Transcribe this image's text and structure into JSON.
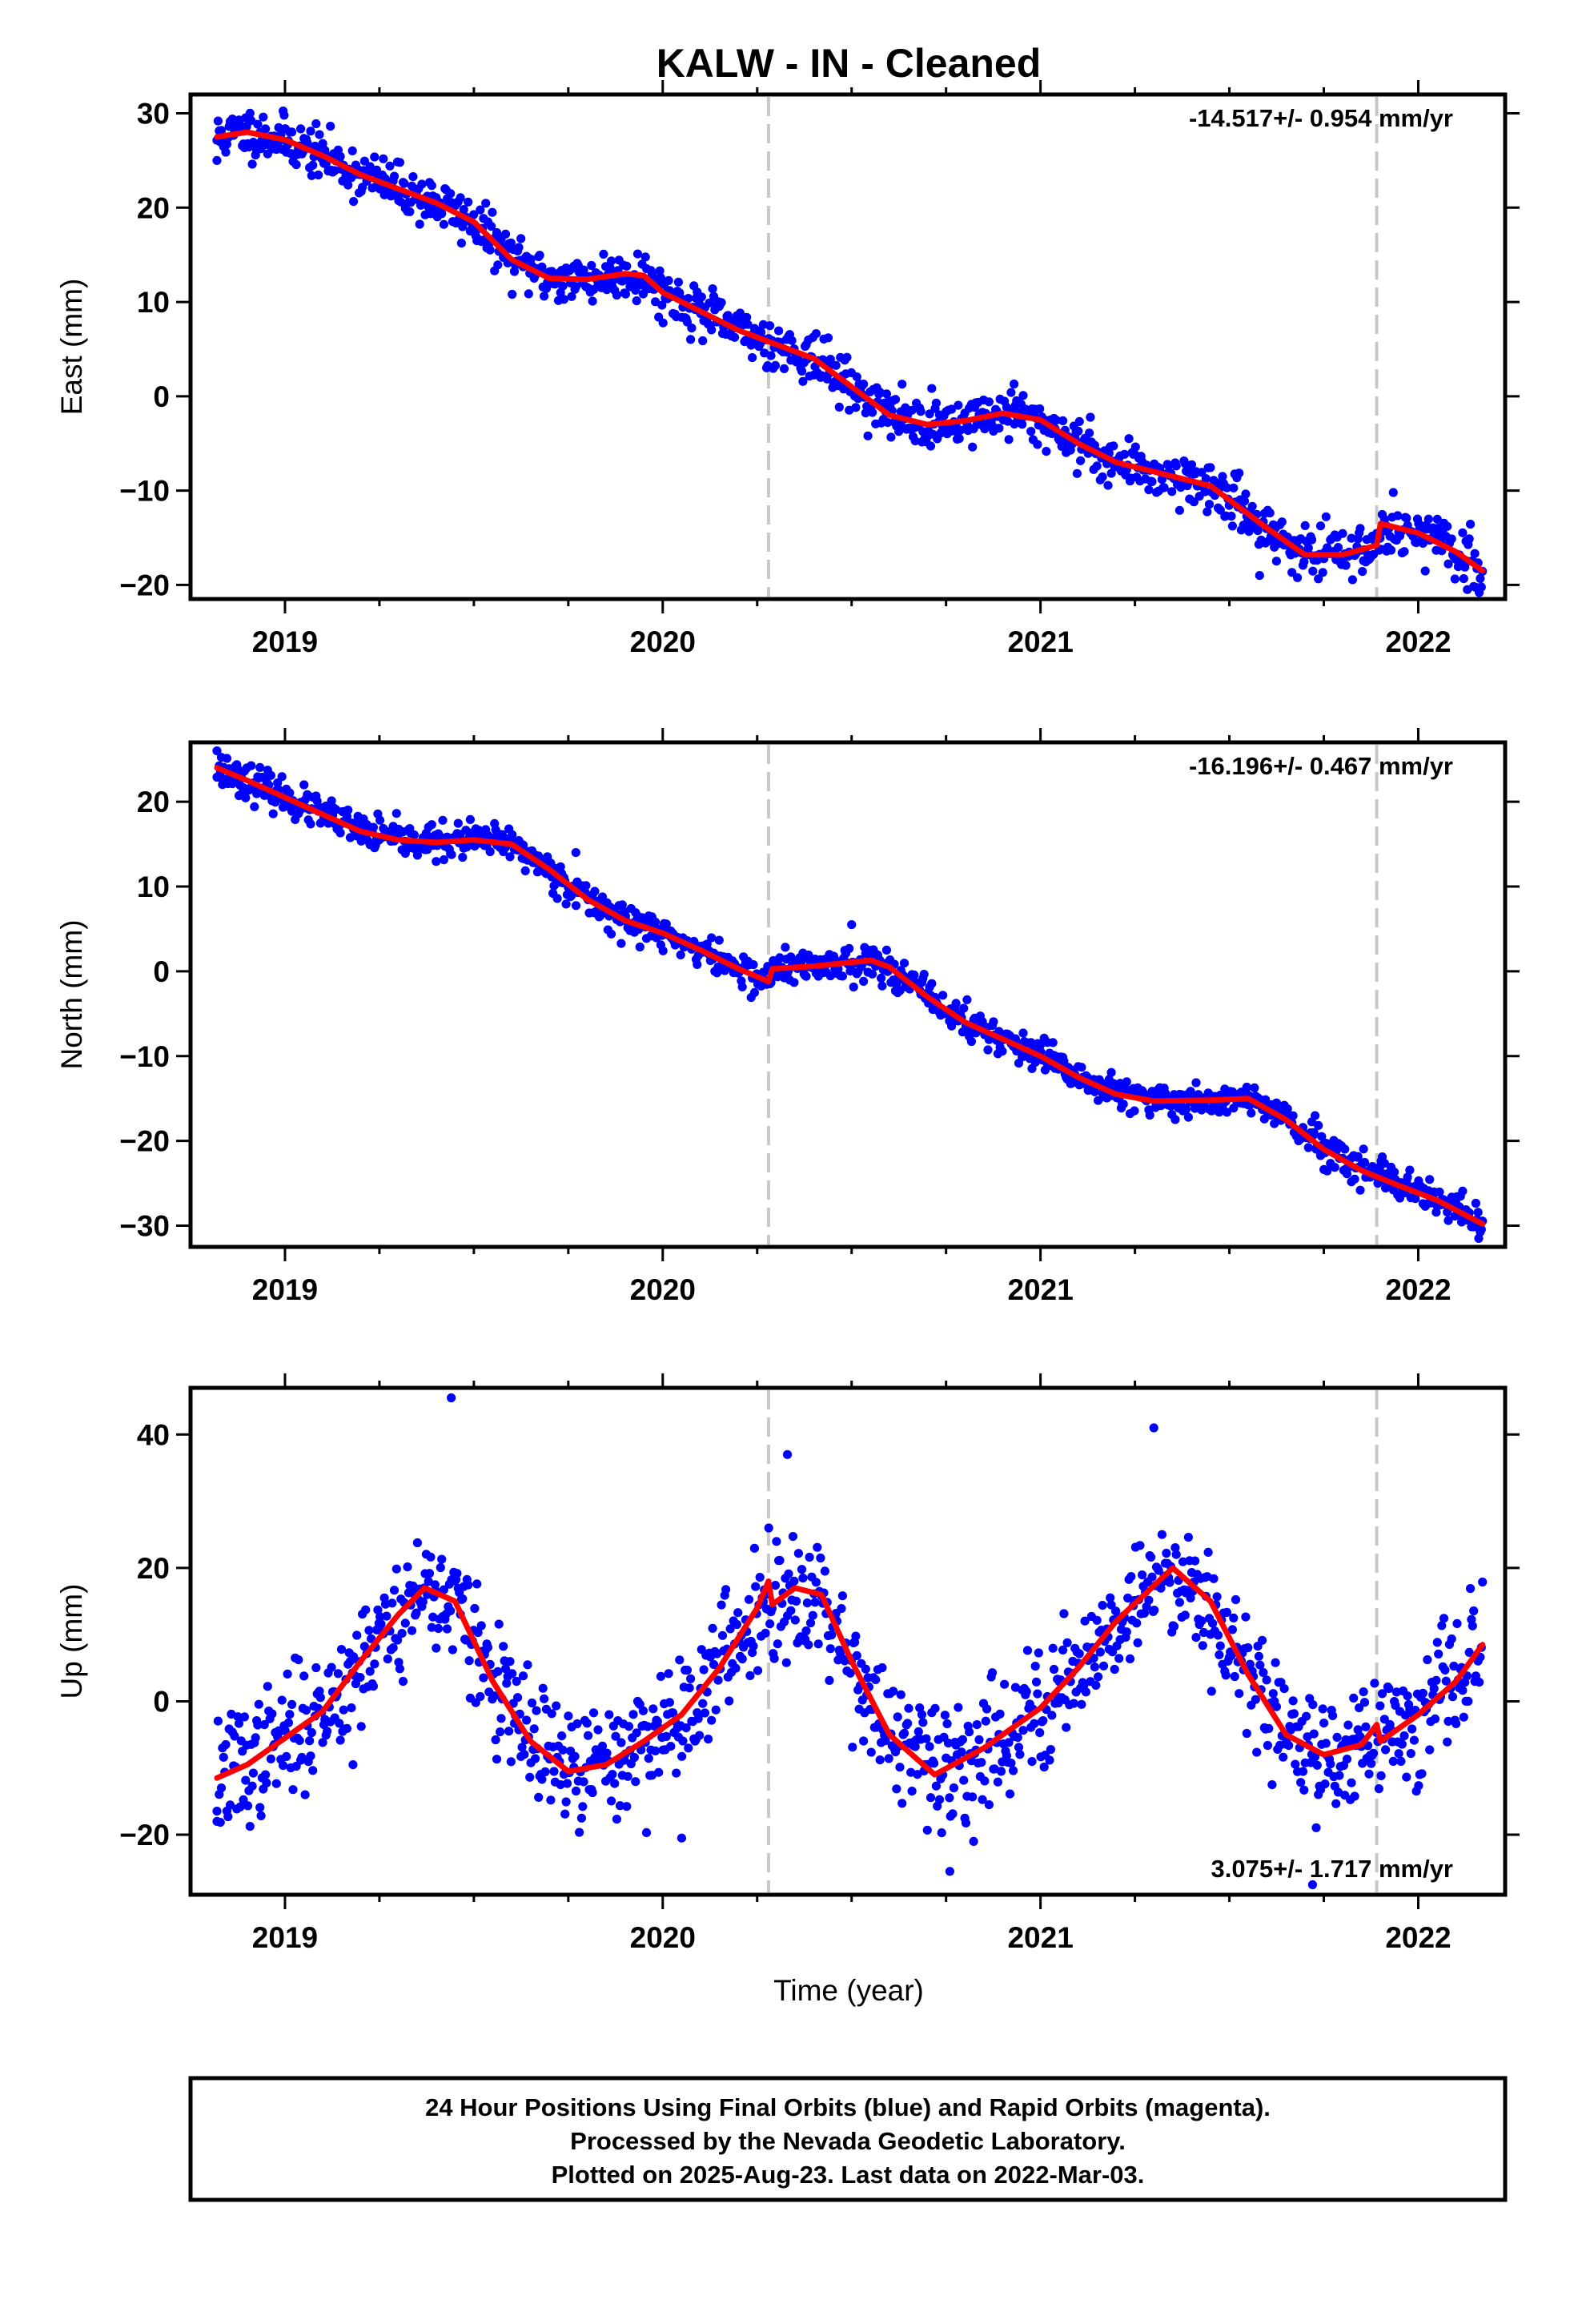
{
  "figure": {
    "title": "KALW  - IN - Cleaned",
    "xlabel": "Time (year)",
    "footer_lines": [
      "24 Hour Positions Using Final Orbits (blue) and Rapid Orbits (magenta).",
      "Processed by the Nevada Geodetic Laboratory.",
      "Plotted on 2025-Aug-23. Last data on 2022-Mar-03."
    ]
  },
  "colors": {
    "points": "#0000ff",
    "model": "#ff0000",
    "reference_lines": "#c8c8c8",
    "frame": "#000000"
  },
  "chart_data": [
    {
      "type": "scatter",
      "name": "east",
      "ylabel": "East (mm)",
      "rate_text": "-14.517+/- 0.954 mm/yr",
      "rate_position": "top-right",
      "xlim": [
        2018.75,
        2022.23
      ],
      "ylim": [
        -21.5,
        32.0
      ],
      "x_ticks": [
        2019,
        2020,
        2021,
        2022
      ],
      "y_ticks": [
        -20,
        -10,
        0,
        10,
        20,
        30
      ],
      "reference_lines_x": [
        2020.28,
        2021.89
      ],
      "point_range_x": [
        2018.82,
        2022.17
      ],
      "noise": 1.3,
      "seed": 11,
      "fit_curve": [
        [
          2018.82,
          27.5
        ],
        [
          2018.9,
          28.0
        ],
        [
          2019.0,
          27.2
        ],
        [
          2019.1,
          25.5
        ],
        [
          2019.2,
          23.5
        ],
        [
          2019.3,
          22.0
        ],
        [
          2019.4,
          20.5
        ],
        [
          2019.5,
          18.5
        ],
        [
          2019.6,
          14.5
        ],
        [
          2019.7,
          12.5
        ],
        [
          2019.8,
          12.4
        ],
        [
          2019.9,
          13.0
        ],
        [
          2019.95,
          12.8
        ],
        [
          2020.0,
          11.0
        ],
        [
          2020.1,
          9.0
        ],
        [
          2020.2,
          7.0
        ],
        [
          2020.28,
          5.8
        ],
        [
          2020.4,
          4.0
        ],
        [
          2020.5,
          1.0
        ],
        [
          2020.6,
          -2.0
        ],
        [
          2020.7,
          -3.0
        ],
        [
          2020.8,
          -2.6
        ],
        [
          2020.9,
          -1.8
        ],
        [
          2021.0,
          -2.5
        ],
        [
          2021.1,
          -5.0
        ],
        [
          2021.2,
          -7.0
        ],
        [
          2021.3,
          -8.0
        ],
        [
          2021.45,
          -9.5
        ],
        [
          2021.6,
          -14.0
        ],
        [
          2021.7,
          -16.8
        ],
        [
          2021.8,
          -16.8
        ],
        [
          2021.89,
          -15.8
        ],
        [
          2021.9,
          -13.5
        ],
        [
          2022.0,
          -14.5
        ],
        [
          2022.1,
          -16.5
        ],
        [
          2022.17,
          -18.5
        ]
      ],
      "outliers": [
        [
          2018.82,
          25.0
        ],
        [
          2022.13,
          -20.5
        ],
        [
          2021.58,
          -19.0
        ],
        [
          2020.93,
          1.3
        ]
      ]
    },
    {
      "type": "scatter",
      "name": "north",
      "ylabel": "North (mm)",
      "rate_text": "-16.196+/- 0.467 mm/yr",
      "rate_position": "top-right",
      "xlim": [
        2018.75,
        2022.23
      ],
      "ylim": [
        -32.5,
        27.0
      ],
      "x_ticks": [
        2019,
        2020,
        2021,
        2022
      ],
      "y_ticks": [
        -30,
        -20,
        -10,
        0,
        10,
        20
      ],
      "reference_lines_x": [
        2020.28,
        2021.89
      ],
      "point_range_x": [
        2018.82,
        2022.17
      ],
      "noise": 1.0,
      "seed": 23,
      "fit_curve": [
        [
          2018.82,
          24.0
        ],
        [
          2018.9,
          22.5
        ],
        [
          2019.0,
          20.5
        ],
        [
          2019.1,
          18.5
        ],
        [
          2019.2,
          16.5
        ],
        [
          2019.3,
          15.5
        ],
        [
          2019.4,
          15.2
        ],
        [
          2019.5,
          15.5
        ],
        [
          2019.6,
          15.0
        ],
        [
          2019.7,
          12.0
        ],
        [
          2019.8,
          8.5
        ],
        [
          2019.9,
          6.0
        ],
        [
          2020.0,
          4.5
        ],
        [
          2020.1,
          2.5
        ],
        [
          2020.2,
          0.3
        ],
        [
          2020.28,
          -1.2
        ],
        [
          2020.29,
          0.3
        ],
        [
          2020.4,
          0.6
        ],
        [
          2020.55,
          1.3
        ],
        [
          2020.6,
          0.5
        ],
        [
          2020.7,
          -3.0
        ],
        [
          2020.8,
          -6.0
        ],
        [
          2020.9,
          -8.0
        ],
        [
          2021.0,
          -10.0
        ],
        [
          2021.1,
          -12.5
        ],
        [
          2021.2,
          -14.5
        ],
        [
          2021.3,
          -15.3
        ],
        [
          2021.45,
          -15.2
        ],
        [
          2021.55,
          -15.0
        ],
        [
          2021.65,
          -17.5
        ],
        [
          2021.75,
          -21.0
        ],
        [
          2021.85,
          -23.5
        ],
        [
          2021.95,
          -25.3
        ],
        [
          2022.05,
          -27.0
        ],
        [
          2022.17,
          -29.8
        ]
      ],
      "outliers": [
        [
          2018.82,
          26.0
        ],
        [
          2022.16,
          -31.5
        ],
        [
          2020.5,
          5.5
        ],
        [
          2019.77,
          14.0
        ]
      ]
    },
    {
      "type": "scatter",
      "name": "up",
      "ylabel": "Up (mm)",
      "rate_text": "3.075+/- 1.717 mm/yr",
      "rate_position": "bottom-right",
      "xlim": [
        2018.75,
        2022.23
      ],
      "ylim": [
        -29.0,
        47.0
      ],
      "x_ticks": [
        2019,
        2020,
        2021,
        2022
      ],
      "y_ticks": [
        -20,
        0,
        20,
        40
      ],
      "reference_lines_x": [
        2020.28,
        2021.89
      ],
      "point_range_x": [
        2018.82,
        2022.17
      ],
      "noise": 4.5,
      "seed": 37,
      "fit_curve": [
        [
          2018.82,
          -11.5
        ],
        [
          2018.9,
          -9.5
        ],
        [
          2019.0,
          -5.5
        ],
        [
          2019.1,
          -1.5
        ],
        [
          2019.2,
          6.0
        ],
        [
          2019.3,
          13.0
        ],
        [
          2019.37,
          17.0
        ],
        [
          2019.45,
          15.0
        ],
        [
          2019.55,
          3.0
        ],
        [
          2019.65,
          -6.0
        ],
        [
          2019.75,
          -10.5
        ],
        [
          2019.85,
          -9.5
        ],
        [
          2019.95,
          -6.0
        ],
        [
          2020.05,
          -2.0
        ],
        [
          2020.15,
          5.0
        ],
        [
          2020.25,
          14.0
        ],
        [
          2020.28,
          18.0
        ],
        [
          2020.29,
          14.5
        ],
        [
          2020.35,
          17.0
        ],
        [
          2020.42,
          16.0
        ],
        [
          2020.5,
          6.0
        ],
        [
          2020.6,
          -5.0
        ],
        [
          2020.72,
          -11.0
        ],
        [
          2020.85,
          -7.0
        ],
        [
          2021.0,
          -1.0
        ],
        [
          2021.1,
          5.0
        ],
        [
          2021.2,
          12.0
        ],
        [
          2021.35,
          20.0
        ],
        [
          2021.45,
          15.0
        ],
        [
          2021.55,
          4.0
        ],
        [
          2021.65,
          -5.0
        ],
        [
          2021.75,
          -8.0
        ],
        [
          2021.85,
          -6.5
        ],
        [
          2021.89,
          -3.5
        ],
        [
          2021.9,
          -6.0
        ],
        [
          2022.0,
          -2.0
        ],
        [
          2022.1,
          3.0
        ],
        [
          2022.17,
          8.5
        ]
      ],
      "outliers": [
        [
          2019.44,
          45.5
        ],
        [
          2021.3,
          41.0
        ],
        [
          2020.33,
          37.0
        ],
        [
          2020.05,
          -20.5
        ],
        [
          2020.76,
          -25.5
        ],
        [
          2021.72,
          -27.5
        ],
        [
          2018.82,
          -18.0
        ],
        [
          2019.18,
          -9.5
        ]
      ]
    }
  ]
}
